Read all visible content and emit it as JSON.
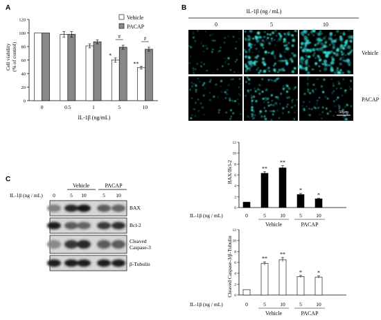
{
  "panel_labels": {
    "a": "A",
    "b": "B",
    "c": "C"
  },
  "chart_data": [
    {
      "type": "bar",
      "panel": "A",
      "ylabel_line1": "Cell viability",
      "ylabel_line2": "(% of control)",
      "xlabel": "IL-1β (ng/mL)",
      "categories": [
        "0",
        "0.5",
        "1",
        "5",
        "10"
      ],
      "ylim": [
        0,
        120
      ],
      "yticks": [
        "0",
        "20",
        "40",
        "60",
        "80",
        "100",
        "120"
      ],
      "series": [
        {
          "name": "Vehicle",
          "color": "#ffffff",
          "values": [
            100,
            98,
            81,
            60,
            49
          ],
          "errors": [
            0,
            4,
            3,
            3,
            2
          ]
        },
        {
          "name": "PACAP",
          "color": "#888888",
          "values": [
            100,
            98,
            87,
            79,
            76
          ],
          "errors": [
            0,
            4,
            3,
            3,
            3
          ]
        }
      ],
      "annotations": [
        {
          "category": "5",
          "series": "Vehicle",
          "text": "*"
        },
        {
          "category": "10",
          "series": "Vehicle",
          "text": "**"
        },
        {
          "category": "5",
          "text": "#"
        },
        {
          "category": "10",
          "text": "#"
        }
      ]
    },
    {
      "type": "bar",
      "panel": "C-top",
      "ylabel": "BAX/Bcl-2",
      "row_label": "IL-1β (ng / mL)",
      "categories": [
        "0",
        "5",
        "10",
        "5",
        "10"
      ],
      "groups": [
        "Vehicle",
        "PACAP"
      ],
      "ylim": [
        0,
        12
      ],
      "yticks": [
        "0",
        "2",
        "4",
        "6",
        "8",
        "10",
        "12"
      ],
      "fill": "#000000",
      "values": [
        1.0,
        6.3,
        7.3,
        2.4,
        1.6
      ],
      "errors": [
        0,
        0.3,
        0.4,
        0.2,
        0.1
      ],
      "significance": [
        "",
        "**",
        "**",
        "*",
        "*"
      ]
    },
    {
      "type": "bar",
      "panel": "C-bottom",
      "ylabel": "Cleaved Caspase-3/β-Tubulin",
      "row_label": "IL-1β (ng / mL)",
      "categories": [
        "0",
        "5",
        "10",
        "5",
        "10"
      ],
      "groups": [
        "Vehicle",
        "PACAP"
      ],
      "ylim": [
        0,
        12
      ],
      "yticks": [
        "0",
        "2",
        "4",
        "6",
        "8",
        "10",
        "12"
      ],
      "fill": "#ffffff",
      "values": [
        1.0,
        5.8,
        6.5,
        3.4,
        3.3
      ],
      "errors": [
        0,
        0.3,
        0.4,
        0.2,
        0.2
      ],
      "significance": [
        "",
        "**",
        "**",
        "*",
        "*"
      ]
    }
  ],
  "microscopy": {
    "title": "IL-1β (ng / mL)",
    "columns": [
      "0",
      "5",
      "10"
    ],
    "rows": [
      "Vehicle",
      "PACAP"
    ],
    "density": [
      [
        0.15,
        0.8,
        1.0
      ],
      [
        0.2,
        0.45,
        0.3
      ]
    ],
    "scale_bar": "50μm",
    "color": "#36e0d8"
  },
  "western_blot": {
    "row_label": "IL-1β (ng / mL)",
    "groups": [
      "Vehicle",
      "PACAP"
    ],
    "lanes": [
      "0",
      "5",
      "10",
      "5",
      "10"
    ],
    "bands": [
      {
        "label": "BAX",
        "intensity": [
          0.35,
          0.85,
          0.95,
          0.55,
          0.5
        ]
      },
      {
        "label": "Bcl-2",
        "intensity": [
          0.9,
          0.55,
          0.5,
          0.75,
          0.8
        ]
      },
      {
        "label_line1": "Cleaved",
        "label_line2": "Caspase-3",
        "intensity": [
          0.3,
          0.75,
          0.85,
          0.55,
          0.55
        ]
      },
      {
        "label": "β-Tubulin",
        "intensity": [
          0.9,
          0.9,
          0.9,
          0.9,
          0.9
        ]
      }
    ]
  }
}
